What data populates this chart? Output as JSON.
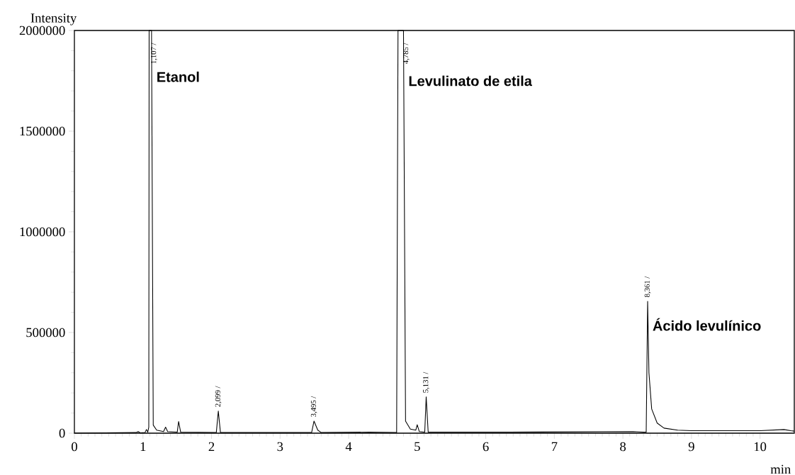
{
  "chart_data": {
    "type": "line",
    "xlabel": "min",
    "ylabel": "Intensity",
    "xlim": [
      0,
      10.5
    ],
    "xticks": [
      0,
      1,
      2,
      3,
      4,
      5,
      6,
      7,
      8,
      9,
      10
    ],
    "ylim": [
      0,
      2000000
    ],
    "yticks": [
      0,
      500000,
      1000000,
      1500000,
      2000000
    ],
    "grid": false,
    "marker": "none",
    "line_style": "solid",
    "series": [
      {
        "color": "#000000",
        "x": [
          0,
          0.9,
          0.93,
          0.96,
          1.03,
          1.05,
          1.07,
          1.085,
          1.09,
          1.107,
          1.125,
          1.15,
          1.2,
          1.3,
          1.33,
          1.36,
          1.5,
          1.52,
          1.55,
          2.07,
          2.099,
          2.13,
          3.46,
          3.495,
          3.55,
          3.6,
          4.3,
          4.7,
          4.72,
          4.785,
          4.8,
          4.83,
          4.9,
          4.98,
          5.0,
          5.03,
          5.11,
          5.131,
          5.16,
          6.35,
          8.15,
          8.3,
          8.34,
          8.361,
          8.38,
          8.42,
          8.5,
          8.6,
          8.8,
          9,
          10,
          10.35,
          10.45,
          10.5
        ],
        "values": [
          0,
          3000,
          8000,
          2000,
          3000,
          18000,
          5000,
          30000,
          2000000,
          2000000,
          2000000,
          40000,
          15000,
          8000,
          30000,
          8000,
          5000,
          58000,
          5000,
          3000,
          110000,
          3000,
          3000,
          60000,
          15000,
          3000,
          5000,
          3000,
          2000000,
          2000000,
          2000000,
          60000,
          20000,
          15000,
          42000,
          8000,
          5000,
          180000,
          5000,
          5000,
          8000,
          5000,
          5000,
          655000,
          300000,
          120000,
          50000,
          25000,
          15000,
          12000,
          12000,
          18000,
          12000,
          10000
        ]
      }
    ],
    "annotations": [
      {
        "text": "1,107 /",
        "x": 1.107,
        "y": 2000000
      },
      {
        "text": "2,099 /",
        "x": 2.099,
        "y": 110000
      },
      {
        "text": "3,495 /",
        "x": 3.495,
        "y": 60000
      },
      {
        "text": "4,785 /",
        "x": 4.785,
        "y": 2000000
      },
      {
        "text": "5,131 /",
        "x": 5.131,
        "y": 180000
      },
      {
        "text": "8,361 /",
        "x": 8.361,
        "y": 655000
      },
      {
        "text": "Etanol",
        "x": 1.125,
        "y": 1770000
      },
      {
        "text": "Levulinato de etila",
        "x": 4.8,
        "y": 1750000
      },
      {
        "text": "Ácido levulínico",
        "x": 8.361,
        "y": 540000
      }
    ]
  }
}
